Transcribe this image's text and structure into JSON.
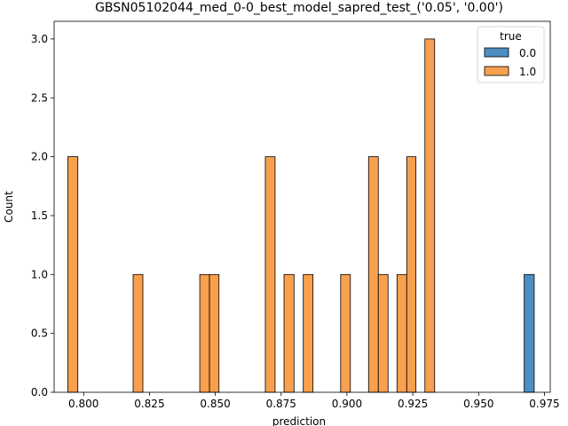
{
  "chart_data": {
    "type": "bar",
    "title": "GBSN05102044_med_0-0_best_model_sapred_test_('0.05', '0.00')",
    "xlabel": "prediction",
    "ylabel": "Count",
    "xlim": [
      0.7888,
      0.9772
    ],
    "ylim": [
      0,
      3.15
    ],
    "grid": false,
    "legend_position": "top-right",
    "legend_title": "true",
    "x_ticks": [
      {
        "value": 0.8,
        "label": "0.800"
      },
      {
        "value": 0.825,
        "label": "0.825"
      },
      {
        "value": 0.85,
        "label": "0.850"
      },
      {
        "value": 0.875,
        "label": "0.875"
      },
      {
        "value": 0.9,
        "label": "0.900"
      },
      {
        "value": 0.925,
        "label": "0.925"
      },
      {
        "value": 0.95,
        "label": "0.950"
      },
      {
        "value": 0.975,
        "label": "0.975"
      }
    ],
    "y_ticks": [
      {
        "value": 0,
        "label": "0.0"
      },
      {
        "value": 0.5,
        "label": "0.5"
      },
      {
        "value": 1,
        "label": "1.0"
      },
      {
        "value": 1.5,
        "label": "1.5"
      },
      {
        "value": 2,
        "label": "2.0"
      },
      {
        "value": 2.5,
        "label": "2.5"
      },
      {
        "value": 3,
        "label": "3.0"
      }
    ],
    "series": [
      {
        "name": "0.0",
        "color": "#4c8fc4",
        "bins": [
          {
            "x0": 0.9673,
            "x1": 0.9711,
            "count": 1
          }
        ]
      },
      {
        "name": "1.0",
        "color": "#f9a04f",
        "bins": [
          {
            "x0": 0.794,
            "x1": 0.7978,
            "count": 2
          },
          {
            "x0": 0.8188,
            "x1": 0.8225,
            "count": 1
          },
          {
            "x0": 0.8441,
            "x1": 0.8478,
            "count": 1
          },
          {
            "x0": 0.8478,
            "x1": 0.8514,
            "count": 1
          },
          {
            "x0": 0.869,
            "x1": 0.8727,
            "count": 2
          },
          {
            "x0": 0.8761,
            "x1": 0.8799,
            "count": 1
          },
          {
            "x0": 0.8834,
            "x1": 0.8871,
            "count": 1
          },
          {
            "x0": 0.8976,
            "x1": 0.9013,
            "count": 1
          },
          {
            "x0": 0.9082,
            "x1": 0.9119,
            "count": 2
          },
          {
            "x0": 0.9119,
            "x1": 0.9156,
            "count": 1
          },
          {
            "x0": 0.919,
            "x1": 0.9227,
            "count": 1
          },
          {
            "x0": 0.9227,
            "x1": 0.9262,
            "count": 2
          },
          {
            "x0": 0.9296,
            "x1": 0.9333,
            "count": 3
          }
        ]
      }
    ]
  }
}
